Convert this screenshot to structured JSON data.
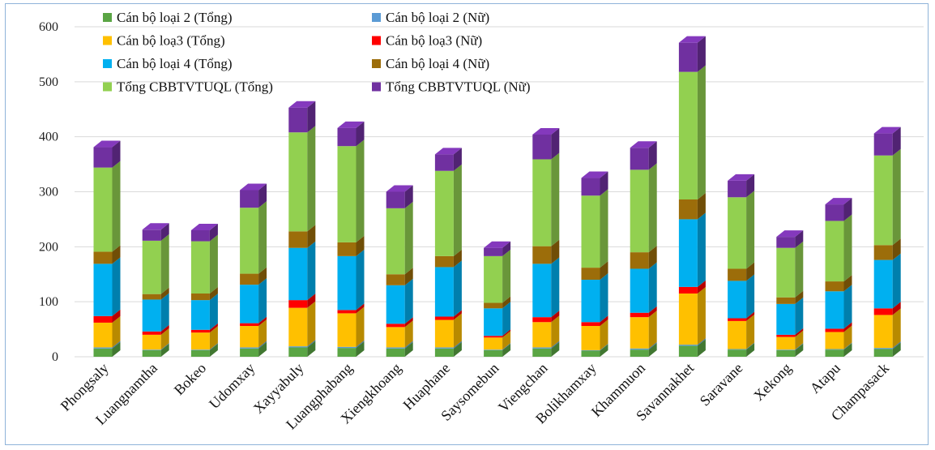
{
  "chart_data": {
    "type": "bar",
    "stacked": true,
    "three_d": true,
    "ylim": [
      0,
      600
    ],
    "yticks": [
      0,
      100,
      200,
      300,
      400,
      500,
      600
    ],
    "grid": true,
    "legend_position": "top-left",
    "categories": [
      "Phongsaly",
      "Luangnamtha",
      "Bokeo",
      "Udomxay",
      "Xayyabuly",
      "Luangphabang",
      "Xiengkhoang",
      "Huaphane",
      "Saysomebun",
      "Viengchan",
      "Bolikhamxay",
      "Khammuon",
      "Savannakhet",
      "Saravane",
      "Xekong",
      "Atapu",
      "Champasack"
    ],
    "series": [
      {
        "name": "Cán bộ loại 2 (Tổng)",
        "color": "#5aa544",
        "values": [
          15,
          12,
          12,
          15,
          17,
          16,
          15,
          15,
          12,
          15,
          11,
          13,
          20,
          13,
          12,
          13,
          14
        ]
      },
      {
        "name": "Cán bộ loại 2 (Nữ)",
        "color": "#5b9bd5",
        "values": [
          2,
          1,
          1,
          2,
          2,
          2,
          2,
          2,
          1,
          2,
          1,
          2,
          2,
          1,
          1,
          1,
          2
        ]
      },
      {
        "name": "Cán bộ loạ3 (Tổng)",
        "color": "#ffc000",
        "values": [
          45,
          27,
          31,
          39,
          70,
          61,
          37,
          50,
          22,
          46,
          44,
          57,
          93,
          51,
          23,
          31,
          60
        ]
      },
      {
        "name": "Cán bộ loạ3 (Nữ)",
        "color": "#ff0000",
        "values": [
          12,
          6,
          5,
          5,
          14,
          6,
          6,
          6,
          3,
          9,
          7,
          8,
          12,
          5,
          4,
          6,
          12
        ]
      },
      {
        "name": "Cán bộ loại 4 (Tổng)",
        "color": "#00b0f0",
        "values": [
          95,
          58,
          54,
          70,
          95,
          98,
          70,
          90,
          50,
          97,
          77,
          80,
          123,
          68,
          56,
          68,
          88
        ]
      },
      {
        "name": "Cán bộ loại 4 (Nữ)",
        "color": "#9c6d0a",
        "values": [
          22,
          10,
          12,
          20,
          30,
          25,
          20,
          20,
          10,
          32,
          22,
          30,
          36,
          22,
          12,
          18,
          27
        ]
      },
      {
        "name": "Tổng CBBTVTUQL (Tổng)",
        "color": "#92d050",
        "values": [
          153,
          97,
          95,
          120,
          180,
          175,
          120,
          155,
          85,
          158,
          131,
          150,
          232,
          130,
          90,
          110,
          163
        ]
      },
      {
        "name": "Tổng CBBTVTUQL (Nữ)",
        "color": "#7030a0",
        "values": [
          37,
          20,
          20,
          32,
          45,
          33,
          30,
          30,
          15,
          45,
          32,
          40,
          53,
          30,
          20,
          30,
          40
        ]
      }
    ]
  }
}
